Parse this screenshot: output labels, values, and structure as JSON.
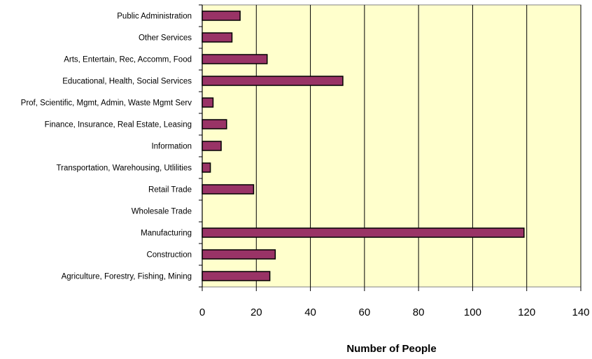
{
  "chart_data": {
    "type": "bar",
    "orientation": "horizontal",
    "title": "",
    "xlabel": "Number of People",
    "ylabel": "",
    "xlim": [
      0,
      140
    ],
    "x_ticks": [
      "0",
      "20",
      "40",
      "60",
      "80",
      "100",
      "120",
      "140"
    ],
    "grid": "vertical",
    "categories": [
      "Public Administration",
      "Other Services",
      "Arts, Entertain, Rec, Accomm, Food",
      "Educational, Health, Social Services",
      "Prof, Scientific, Mgmt, Admin, Waste Mgmt Serv",
      "Finance, Insurance, Real Estate, Leasing",
      "Information",
      "Transportation, Warehousing, Utlilities",
      "Retail Trade",
      "Wholesale Trade",
      "Manufacturing",
      "Construction",
      "Agriculture, Forestry, Fishing, Mining"
    ],
    "values": [
      14,
      11,
      24,
      52,
      4,
      9,
      7,
      3,
      19,
      0,
      119,
      27,
      25
    ],
    "colors": {
      "bar": "#993366",
      "plot_background": "#ffffcc",
      "gridline": "#000000"
    }
  }
}
